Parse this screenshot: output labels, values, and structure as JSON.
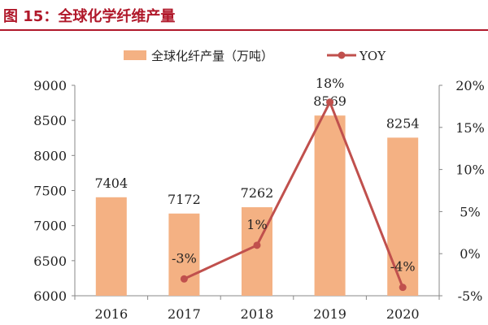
{
  "title": "图 15：全球化学纤维产量",
  "chart_data": {
    "type": "bar",
    "categories": [
      "2016",
      "2017",
      "2018",
      "2019",
      "2020"
    ],
    "series": [
      {
        "name": "全球化纤产量（万吨）",
        "type": "bar",
        "axis": "left",
        "values": [
          7404,
          7172,
          7262,
          8569,
          8254
        ],
        "labels": [
          "7404",
          "7172",
          "7262",
          "8569",
          "8254"
        ],
        "color": "#f4b183"
      },
      {
        "name": "YOY",
        "type": "line",
        "axis": "right",
        "values": [
          null,
          -3,
          1,
          18,
          -4
        ],
        "labels": [
          "",
          "-3%",
          "1%",
          "18%",
          "-4%"
        ],
        "color": "#c0504d"
      }
    ],
    "ylim_left": [
      6000,
      9000
    ],
    "yticks_left": [
      "6000",
      "6500",
      "7000",
      "7500",
      "8000",
      "8500",
      "9000"
    ],
    "ylim_right": [
      -5,
      20
    ],
    "yticks_right": [
      "-5%",
      "0%",
      "5%",
      "10%",
      "15%",
      "20%"
    ],
    "grid": false,
    "legend_position": "top"
  }
}
